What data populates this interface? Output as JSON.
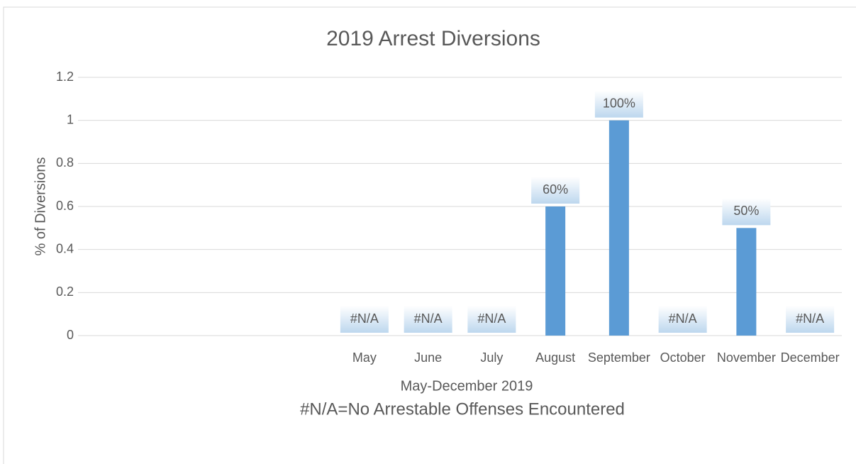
{
  "chart_data": {
    "type": "bar",
    "title": "2019 Arrest Diversions",
    "x_label": "May-December 2019",
    "y_label": "% of Diversions",
    "annotation": "#N/A=No Arrestable Offenses Encountered",
    "categories": [
      null,
      null,
      null,
      null,
      "May",
      "June",
      "July",
      "August",
      "September",
      "October",
      "November",
      "December"
    ],
    "values": [
      null,
      null,
      null,
      null,
      null,
      null,
      null,
      0.6,
      1,
      null,
      0.5,
      null
    ],
    "value_labels": [
      null,
      null,
      null,
      null,
      "#N/A",
      "#N/A",
      "#N/A",
      "60%",
      "100%",
      "#N/A",
      "50%",
      "#N/A"
    ],
    "color": "#5b9bd5",
    "ylim": [
      0,
      1.2
    ],
    "yticks": [
      0,
      0.2,
      0.4,
      0.6,
      0.8,
      1,
      1.2
    ],
    "grid": true
  }
}
